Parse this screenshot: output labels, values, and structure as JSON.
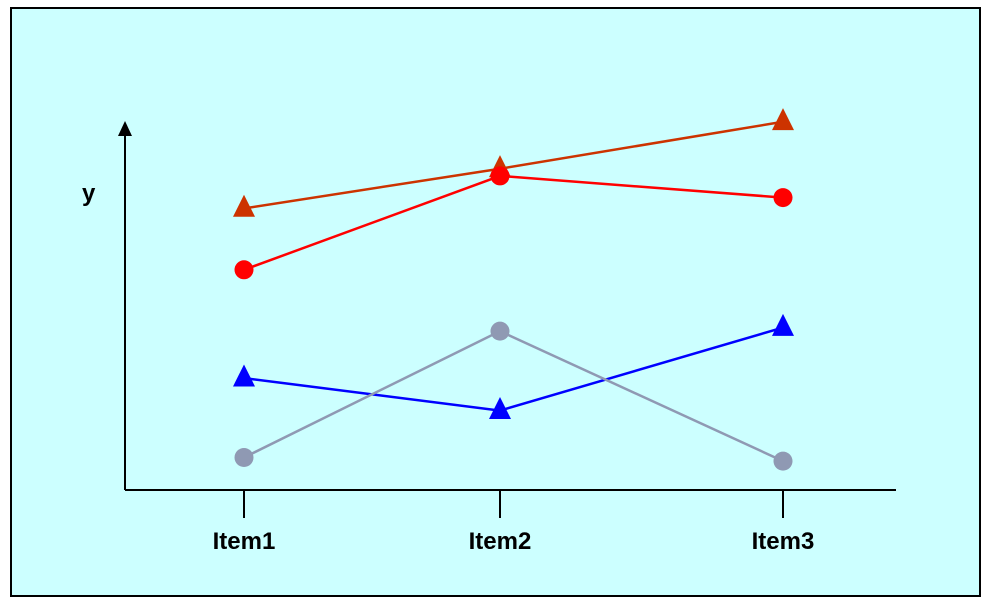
{
  "chart_data": {
    "type": "line",
    "title": "",
    "xlabel": "",
    "ylabel": "y",
    "categories": [
      "Item1",
      "Item2",
      "Item3"
    ],
    "ylim": [
      0,
      100
    ],
    "grid": false,
    "legend": "none",
    "background_color": "#ccffff",
    "series": [
      {
        "values": [
          78,
          89,
          102
        ],
        "color": "#cc3300",
        "marker": "triangle"
      },
      {
        "values": [
          61,
          87,
          81
        ],
        "color": "#ff0000",
        "marker": "circle"
      },
      {
        "values": [
          31,
          22,
          45
        ],
        "color": "#0000ff",
        "marker": "triangle"
      },
      {
        "values": [
          9,
          44,
          8
        ],
        "color": "#8f99b3",
        "marker": "circle"
      }
    ]
  }
}
